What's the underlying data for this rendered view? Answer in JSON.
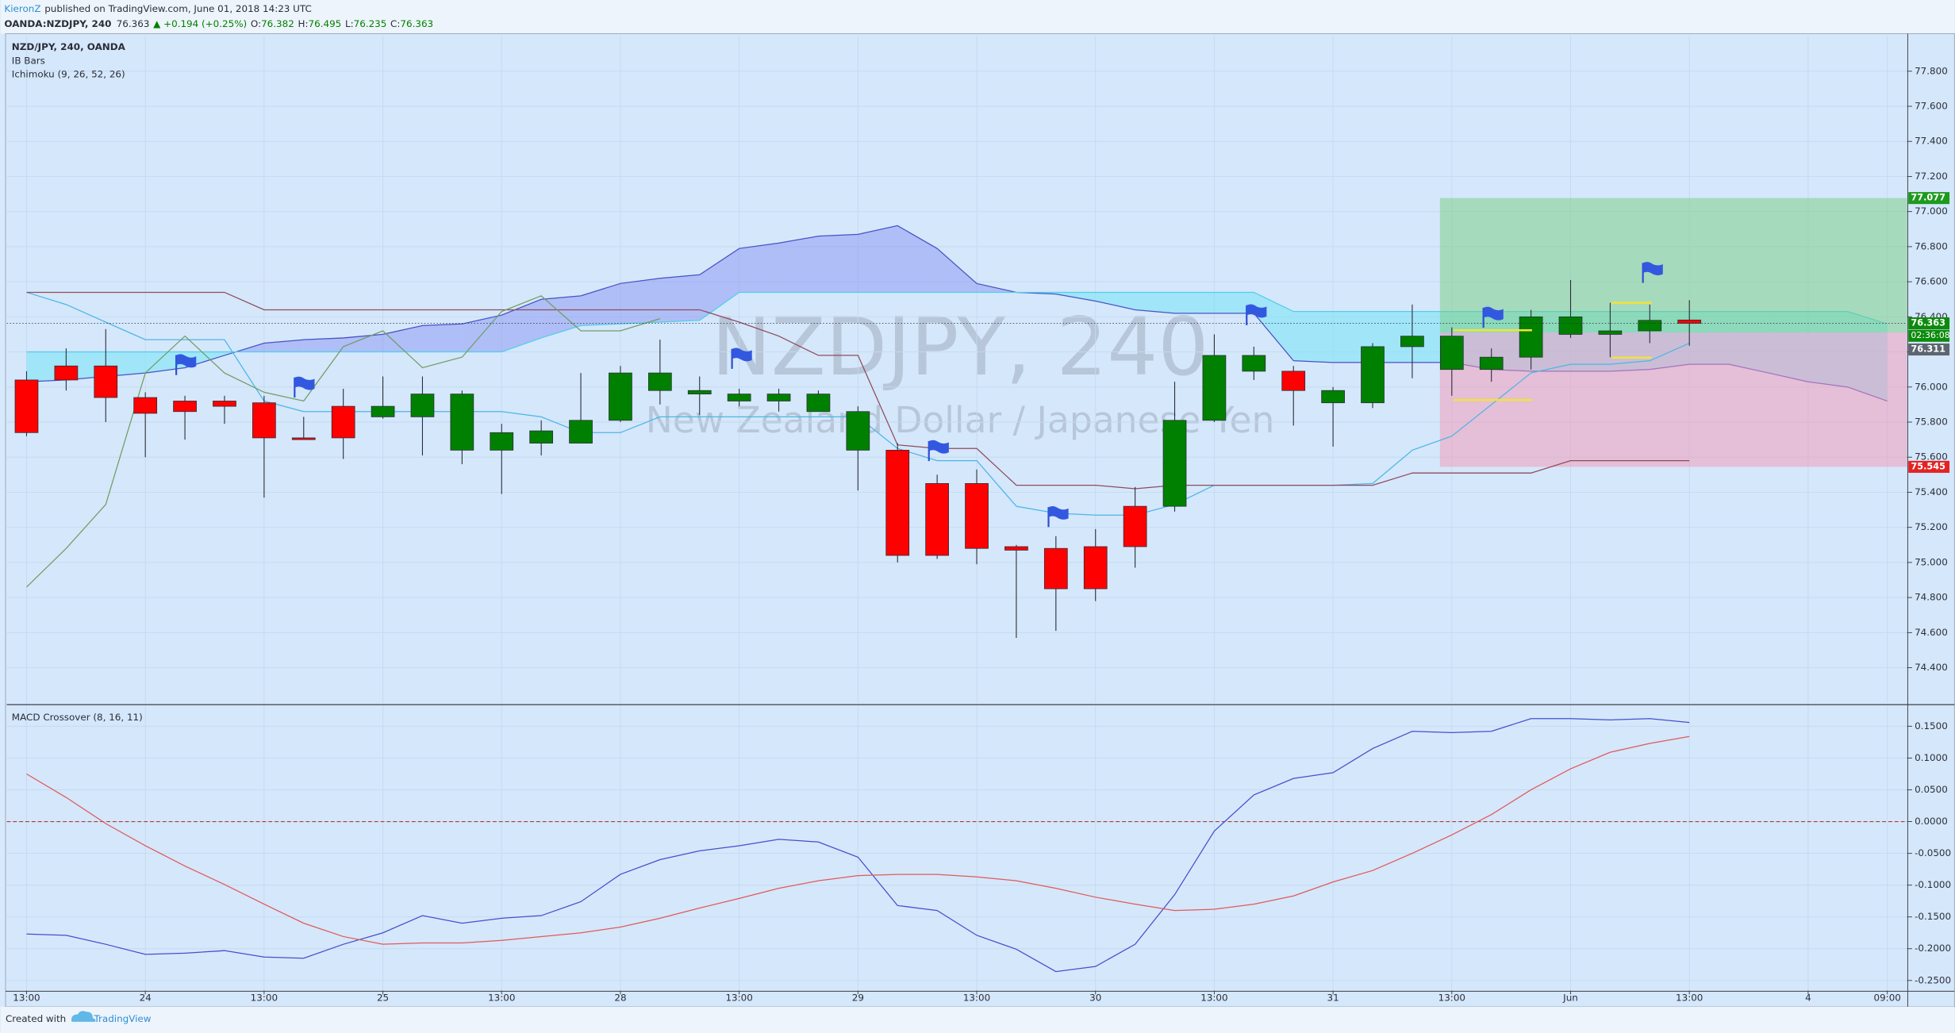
{
  "header": {
    "author": "KieronZ",
    "published": "published on TradingView.com, June 01, 2018 14:23 UTC",
    "symbol": "OANDA:NZDJPY, 240",
    "change": "▲ +0.194 (+0.25%)",
    "ohlc_labels": [
      "O:",
      "H:",
      "L:",
      "C:"
    ]
  },
  "footer": {
    "created": "Created with",
    "brand": "TradingView"
  },
  "chart_data": [
    {
      "type": "candlestick",
      "title": "NZD/JPY, 240, OANDA",
      "indicators": [
        "IB Bars",
        "Ichimoku (9, 26, 52, 26)"
      ],
      "watermark": "NZDJPY, 240",
      "watermark_subtitle": "New Zealand Dollar / Japanese Yen",
      "categories": [
        "13:00",
        null,
        null,
        "24",
        null,
        null,
        "13:00",
        null,
        null,
        "25",
        null,
        null,
        "13:00",
        null,
        null,
        "28",
        null,
        null,
        "13:00",
        null,
        null,
        "29",
        null,
        null,
        "13:00",
        null,
        null,
        "30",
        null,
        null,
        "13:00",
        null,
        null,
        "31",
        null,
        null,
        "13:00",
        null,
        null,
        "Jun",
        null,
        null,
        "13:00",
        null,
        null,
        "4",
        null,
        "09:00"
      ],
      "open": [
        76.04,
        76.12,
        76.12,
        75.94,
        75.92,
        75.92,
        75.91,
        75.71,
        75.89,
        75.83,
        75.83,
        75.64,
        75.64,
        75.68,
        75.68,
        75.81,
        75.98,
        75.96,
        75.92,
        75.92,
        75.86,
        75.64,
        75.64,
        75.45,
        75.45,
        75.09,
        75.08,
        75.09,
        75.32,
        75.32,
        75.81,
        76.09,
        76.09,
        75.91,
        75.91,
        76.23,
        76.1,
        76.1,
        76.17,
        76.3,
        76.3,
        76.32,
        76.382,
        null,
        null,
        null,
        null,
        null
      ],
      "high": [
        76.09,
        76.22,
        76.33,
        75.97,
        75.95,
        75.95,
        75.95,
        75.83,
        75.99,
        76.06,
        76.06,
        75.98,
        75.79,
        75.81,
        76.08,
        76.12,
        76.27,
        76.06,
        75.99,
        75.99,
        75.98,
        75.89,
        75.68,
        75.5,
        75.53,
        75.1,
        75.15,
        75.19,
        75.43,
        76.03,
        76.3,
        76.23,
        76.12,
        76.0,
        76.25,
        76.47,
        76.34,
        76.22,
        76.44,
        76.61,
        76.48,
        76.47,
        76.495,
        null,
        null,
        null,
        null,
        null
      ],
      "low": [
        75.72,
        75.98,
        75.8,
        75.6,
        75.7,
        75.79,
        75.37,
        75.7,
        75.59,
        75.82,
        75.61,
        75.56,
        75.39,
        75.61,
        75.68,
        75.8,
        75.9,
        75.84,
        75.89,
        75.86,
        75.86,
        75.41,
        75.0,
        75.02,
        74.99,
        74.57,
        74.61,
        74.78,
        74.97,
        75.29,
        75.8,
        76.04,
        75.78,
        75.66,
        75.88,
        76.05,
        75.95,
        76.03,
        76.1,
        76.28,
        76.17,
        76.25,
        76.235,
        null,
        null,
        null,
        null,
        null
      ],
      "close": [
        75.74,
        76.04,
        75.94,
        75.85,
        75.86,
        75.89,
        75.71,
        75.7,
        75.71,
        75.89,
        75.96,
        75.96,
        75.74,
        75.75,
        75.81,
        76.08,
        76.08,
        75.98,
        75.96,
        75.96,
        75.96,
        75.86,
        75.04,
        75.04,
        75.08,
        75.07,
        74.85,
        74.85,
        75.09,
        75.81,
        76.18,
        76.18,
        75.98,
        75.98,
        76.23,
        76.29,
        76.29,
        76.17,
        76.4,
        76.4,
        76.32,
        76.38,
        76.363,
        null,
        null,
        null,
        null,
        null
      ],
      "up_color": "#008000",
      "down_color": "#ff0000",
      "series": [
        {
          "color": "#4cb6e6",
          "values": [
            76.54,
            76.47,
            76.37,
            76.27,
            76.27,
            76.27,
            75.92,
            75.86,
            75.86,
            75.86,
            75.86,
            75.86,
            75.86,
            75.83,
            75.74,
            75.74,
            75.83,
            75.83,
            75.83,
            75.83,
            75.83,
            75.83,
            75.65,
            75.58,
            75.58,
            75.32,
            75.28,
            75.27,
            75.27,
            75.33,
            75.44,
            75.44,
            75.44,
            75.44,
            75.45,
            75.64,
            75.72,
            75.9,
            76.08,
            76.13,
            76.13,
            76.15,
            76.25,
            null,
            null,
            null,
            null,
            null
          ]
        },
        {
          "color": "#8e4c5c",
          "values": [
            76.54,
            76.54,
            76.54,
            76.54,
            76.54,
            76.54,
            76.44,
            76.44,
            76.44,
            76.44,
            76.44,
            76.44,
            76.44,
            76.44,
            76.44,
            76.44,
            76.44,
            76.44,
            76.37,
            76.29,
            76.18,
            76.18,
            75.67,
            75.65,
            75.65,
            75.44,
            75.44,
            75.44,
            75.42,
            75.44,
            75.44,
            75.44,
            75.44,
            75.44,
            75.44,
            75.51,
            75.51,
            75.51,
            75.51,
            75.58,
            75.58,
            75.58,
            75.58,
            null,
            null,
            null,
            null,
            null
          ]
        },
        {
          "color": "#6f9e62",
          "values": [
            74.86,
            75.08,
            75.33,
            76.08,
            76.29,
            76.08,
            75.97,
            75.92,
            76.23,
            76.32,
            76.11,
            76.17,
            76.43,
            76.52,
            76.32,
            76.32,
            76.39,
            null,
            null,
            null,
            null,
            null,
            null,
            null,
            null,
            null,
            null,
            null,
            null,
            null,
            null,
            null,
            null,
            null,
            null,
            null,
            null,
            null,
            null,
            null,
            null,
            null,
            null,
            null,
            null,
            null,
            null,
            null
          ]
        }
      ],
      "cloud": {
        "fills": [
          "rgba(105,115,240,0.35)",
          "rgba(110,228,246,0.5)"
        ],
        "series": [
          {
            "color": "#4a52c4",
            "values": [
              76.03,
              76.04,
              76.06,
              76.08,
              76.11,
              76.18,
              76.25,
              76.27,
              76.28,
              76.3,
              76.35,
              76.36,
              76.41,
              76.5,
              76.52,
              76.59,
              76.62,
              76.64,
              76.79,
              76.82,
              76.86,
              76.87,
              76.92,
              76.79,
              76.59,
              76.54,
              76.53,
              76.49,
              76.44,
              76.42,
              76.42,
              76.42,
              76.15,
              76.14,
              76.14,
              76.14,
              76.14,
              76.1,
              76.09,
              76.09,
              76.09,
              76.1,
              76.13,
              76.13,
              76.08,
              76.03,
              76.0,
              75.92
            ]
          },
          {
            "color": "#4fd0ea",
            "values": [
              76.2,
              76.2,
              76.2,
              76.2,
              76.2,
              76.2,
              76.2,
              76.2,
              76.2,
              76.2,
              76.2,
              76.2,
              76.2,
              76.28,
              76.35,
              76.36,
              76.37,
              76.38,
              76.54,
              76.54,
              76.54,
              76.54,
              76.54,
              76.54,
              76.54,
              76.54,
              76.54,
              76.54,
              76.54,
              76.54,
              76.54,
              76.54,
              76.43,
              76.43,
              76.43,
              76.43,
              76.43,
              76.43,
              76.43,
              76.43,
              76.43,
              76.43,
              76.43,
              76.43,
              76.43,
              76.43,
              76.43,
              76.36
            ]
          }
        ]
      },
      "position": {
        "target": 77.077,
        "entry": 76.311,
        "stop": 75.545,
        "profit_fill": "rgba(120,205,125,0.5)",
        "loss_fill": "rgba(245,150,180,0.5)"
      },
      "countdown": "02:36:08",
      "ylim": [
        74.2,
        78.0
      ],
      "yticks": [
        {
          "value": 74.4,
          "label": "74.400"
        },
        {
          "value": 74.6,
          "label": "74.600"
        },
        {
          "value": 74.8,
          "label": "74.800"
        },
        {
          "value": 75.0,
          "label": "75.000"
        },
        {
          "value": 75.2,
          "label": "75.200"
        },
        {
          "value": 75.4,
          "label": "75.400"
        },
        {
          "value": 75.6,
          "label": "75.600"
        },
        {
          "value": 75.8,
          "label": "75.800"
        },
        {
          "value": 76.0,
          "label": "76.000"
        },
        {
          "value": 76.2,
          "label": "76.200"
        },
        {
          "value": 76.4,
          "label": "76.400"
        },
        {
          "value": 76.6,
          "label": "76.600"
        },
        {
          "value": 76.8,
          "label": "76.800"
        },
        {
          "value": 77.0,
          "label": "77.000"
        },
        {
          "value": 77.2,
          "label": "77.200"
        },
        {
          "value": 77.4,
          "label": "77.400"
        },
        {
          "value": 77.6,
          "label": "77.600"
        },
        {
          "value": 77.8,
          "label": "77.800"
        }
      ],
      "grid": true
    },
    {
      "type": "line",
      "title": "MACD Crossover (8, 16, 11)",
      "series": [
        {
          "color": "#4450cc",
          "values": [
            -0.177,
            -0.179,
            -0.193,
            -0.209,
            -0.207,
            -0.203,
            -0.213,
            -0.215,
            -0.193,
            -0.175,
            -0.148,
            -0.16,
            -0.152,
            -0.148,
            -0.126,
            -0.083,
            -0.06,
            -0.046,
            -0.038,
            -0.028,
            -0.032,
            -0.056,
            -0.132,
            -0.14,
            -0.179,
            -0.201,
            -0.236,
            -0.228,
            -0.193,
            -0.115,
            -0.015,
            0.042,
            0.068,
            0.077,
            0.115,
            0.142,
            0.14,
            0.142,
            0.162,
            0.162,
            0.16,
            0.162,
            0.156,
            null,
            null,
            null,
            null,
            null
          ]
        },
        {
          "color": "#e05a5a",
          "values": [
            0.075,
            0.038,
            -0.003,
            -0.038,
            -0.07,
            -0.099,
            -0.13,
            -0.16,
            -0.181,
            -0.193,
            -0.191,
            -0.191,
            -0.187,
            -0.181,
            -0.175,
            -0.166,
            -0.152,
            -0.136,
            -0.121,
            -0.105,
            -0.093,
            -0.085,
            -0.083,
            -0.083,
            -0.087,
            -0.093,
            -0.105,
            -0.119,
            -0.13,
            -0.14,
            -0.138,
            -0.13,
            -0.117,
            -0.095,
            -0.077,
            -0.05,
            -0.021,
            0.011,
            0.05,
            0.083,
            0.109,
            0.123,
            0.134,
            null,
            null,
            null,
            null,
            null
          ]
        }
      ],
      "hline": {
        "value": 0,
        "color": "#b03a3a"
      },
      "ylim": [
        -0.266,
        0.183
      ],
      "yticks": [
        {
          "value": -0.25,
          "label": "-0.2500"
        },
        {
          "value": -0.2,
          "label": "-0.2000"
        },
        {
          "value": -0.15,
          "label": "-0.1500"
        },
        {
          "value": -0.1,
          "label": "-0.1000"
        },
        {
          "value": -0.05,
          "label": "-0.0500"
        },
        {
          "value": 0,
          "label": "0.0000"
        },
        {
          "value": 0.05,
          "label": "0.0500"
        },
        {
          "value": 0.1,
          "label": "0.1000"
        },
        {
          "value": 0.15,
          "label": "0.1500"
        }
      ],
      "grid": true
    }
  ]
}
